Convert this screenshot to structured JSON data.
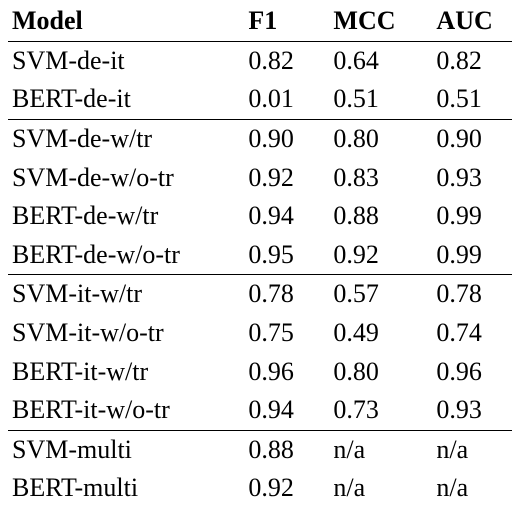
{
  "table": {
    "headers": [
      "Model",
      "F1",
      "MCC",
      "AUC"
    ],
    "groups": [
      [
        [
          "SVM-de-it",
          "0.82",
          "0.64",
          "0.82"
        ],
        [
          "BERT-de-it",
          "0.01",
          "0.51",
          "0.51"
        ]
      ],
      [
        [
          "SVM-de-w/tr",
          "0.90",
          "0.80",
          "0.90"
        ],
        [
          "SVM-de-w/o-tr",
          "0.92",
          "0.83",
          "0.93"
        ],
        [
          "BERT-de-w/tr",
          "0.94",
          "0.88",
          "0.99"
        ],
        [
          "BERT-de-w/o-tr",
          "0.95",
          "0.92",
          "0.99"
        ]
      ],
      [
        [
          "SVM-it-w/tr",
          "0.78",
          "0.57",
          "0.78"
        ],
        [
          "SVM-it-w/o-tr",
          "0.75",
          "0.49",
          "0.74"
        ],
        [
          "BERT-it-w/tr",
          "0.96",
          "0.80",
          "0.96"
        ],
        [
          "BERT-it-w/o-tr",
          "0.94",
          "0.73",
          "0.93"
        ]
      ],
      [
        [
          "SVM-multi",
          "0.88",
          "n/a",
          "n/a"
        ],
        [
          "BERT-multi",
          "0.92",
          "n/a",
          "n/a"
        ]
      ]
    ]
  }
}
